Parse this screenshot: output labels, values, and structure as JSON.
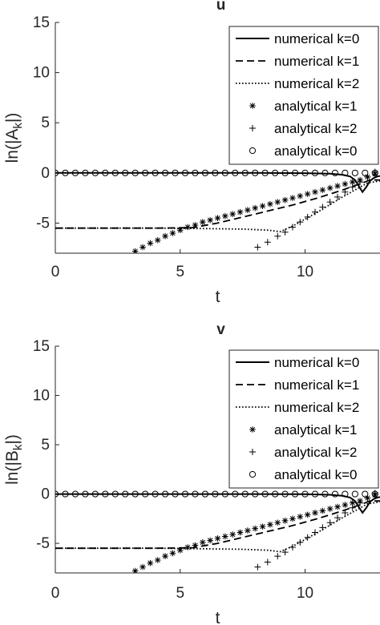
{
  "chart_data": [
    {
      "type": "line",
      "title": "u",
      "xlabel": "t",
      "ylabel": "ln(|A_k|)",
      "ylabel_main": "ln(|A",
      "ylabel_sub": "k",
      "ylabel_end": "|)",
      "xlim": [
        0,
        13
      ],
      "ylim": [
        -8,
        15
      ],
      "xticks": [
        0,
        5,
        10
      ],
      "yticks": [
        -5,
        0,
        5,
        10,
        15
      ],
      "xtick_labels": [
        "0",
        "5",
        "10"
      ],
      "ytick_labels": [
        "-5",
        "0",
        "5",
        "10",
        "15"
      ],
      "grid": false,
      "legend_position": "top-right",
      "series": [
        {
          "name": "numerical k=0",
          "style": "solid",
          "x": [
            0,
            4,
            8,
            10,
            11,
            11.5,
            11.8,
            12.0,
            12.15,
            12.3,
            12.45,
            12.6,
            12.75,
            12.9,
            13
          ],
          "y": [
            0,
            0,
            0,
            -0.02,
            -0.08,
            -0.18,
            -0.35,
            -0.7,
            -1.3,
            -1.9,
            -1.4,
            -0.8,
            -0.5,
            -0.35,
            -0.3
          ]
        },
        {
          "name": "numerical k=1",
          "style": "dashed",
          "x": [
            0,
            2,
            4,
            5.5,
            6.5,
            7.5,
            8.5,
            9.5,
            10.5,
            11.5,
            12.3,
            12.6,
            13
          ],
          "y": [
            -5.5,
            -5.5,
            -5.5,
            -5.45,
            -5.0,
            -4.4,
            -3.8,
            -3.2,
            -2.5,
            -1.7,
            -1.0,
            -0.7,
            -0.7
          ]
        },
        {
          "name": "numerical k=2",
          "style": "dotted",
          "x": [
            0,
            2,
            4,
            6,
            7.5,
            8.5,
            9.0,
            9.5,
            10.5,
            11.5,
            12.5,
            13
          ],
          "y": [
            -5.5,
            -5.5,
            -5.5,
            -5.55,
            -5.6,
            -5.7,
            -5.85,
            -5.3,
            -3.9,
            -2.4,
            -1.0,
            -0.8
          ]
        },
        {
          "name": "analytical k=1",
          "style": "marker-asterisk",
          "x": [
            3.2,
            3.5,
            3.8,
            4.1,
            4.4,
            4.7,
            5.0,
            5.3,
            5.6,
            5.9,
            6.2,
            6.5,
            6.8,
            7.1,
            7.4,
            7.7,
            8.0,
            8.3,
            8.6,
            8.9,
            9.2,
            9.5,
            9.8,
            10.1,
            10.4,
            10.7,
            11.0,
            11.3,
            11.6,
            11.9,
            12.2,
            12.5,
            12.8
          ],
          "y": [
            -7.8,
            -7.4,
            -7.0,
            -6.7,
            -6.3,
            -6.0,
            -5.7,
            -5.4,
            -5.2,
            -4.9,
            -4.7,
            -4.5,
            -4.3,
            -4.1,
            -3.9,
            -3.7,
            -3.5,
            -3.3,
            -3.1,
            -2.9,
            -2.7,
            -2.5,
            -2.3,
            -2.1,
            -1.9,
            -1.7,
            -1.5,
            -1.3,
            -1.1,
            -0.9,
            -0.7,
            -0.4,
            -0.1
          ]
        },
        {
          "name": "analytical k=2",
          "style": "marker-plus",
          "x": [
            8.1,
            8.5,
            8.9,
            9.2,
            9.5,
            9.8,
            10.1,
            10.4,
            10.7,
            11.0,
            11.3,
            11.6,
            11.9,
            12.2,
            12.5,
            12.8
          ],
          "y": [
            -7.4,
            -6.9,
            -6.3,
            -5.9,
            -5.4,
            -4.9,
            -4.4,
            -3.9,
            -3.4,
            -2.9,
            -2.4,
            -1.9,
            -1.4,
            -0.9,
            -0.4,
            0.1
          ]
        },
        {
          "name": "analytical k=0",
          "style": "marker-circle",
          "x": [
            0,
            0.4,
            0.8,
            1.2,
            1.6,
            2.0,
            2.4,
            2.8,
            3.2,
            3.6,
            4.0,
            4.4,
            4.8,
            5.2,
            5.6,
            6.0,
            6.4,
            6.8,
            7.2,
            7.6,
            8.0,
            8.4,
            8.8,
            9.2,
            9.6,
            10.0,
            10.4,
            10.8,
            11.2,
            11.6,
            12.0,
            12.4,
            12.8
          ],
          "y": [
            0,
            0,
            0,
            0,
            0,
            0,
            0,
            0,
            0,
            0,
            0,
            0,
            0,
            0,
            0,
            0,
            0,
            0,
            0,
            0,
            0,
            0,
            0,
            0,
            0,
            0,
            0,
            0,
            0,
            0,
            0,
            0,
            0
          ]
        }
      ]
    },
    {
      "type": "line",
      "title": "v",
      "xlabel": "t",
      "ylabel": "ln(|B_k|)",
      "ylabel_main": "ln(|B",
      "ylabel_sub": "k",
      "ylabel_end": "|)",
      "xlim": [
        0,
        13
      ],
      "ylim": [
        -8,
        15
      ],
      "xticks": [
        0,
        5,
        10
      ],
      "yticks": [
        -5,
        0,
        5,
        10,
        15
      ],
      "xtick_labels": [
        "0",
        "5",
        "10"
      ],
      "ytick_labels": [
        "-5",
        "0",
        "5",
        "10",
        "15"
      ],
      "grid": false,
      "legend_position": "top-right",
      "series": [
        {
          "name": "numerical k=0",
          "style": "solid",
          "x": [
            0,
            4,
            8,
            10,
            11,
            11.5,
            11.8,
            12.0,
            12.15,
            12.3,
            12.45,
            12.6,
            12.75,
            12.9,
            13
          ],
          "y": [
            0,
            0,
            0,
            -0.02,
            -0.08,
            -0.18,
            -0.35,
            -0.7,
            -1.3,
            -1.9,
            -1.4,
            -0.8,
            -0.5,
            -0.35,
            -0.3
          ]
        },
        {
          "name": "numerical k=1",
          "style": "dashed",
          "x": [
            0,
            2,
            4,
            5.5,
            6.5,
            7.5,
            8.5,
            9.5,
            10.5,
            11.5,
            12.3,
            12.6,
            13
          ],
          "y": [
            -5.5,
            -5.5,
            -5.5,
            -5.45,
            -5.0,
            -4.4,
            -3.8,
            -3.2,
            -2.5,
            -1.7,
            -1.0,
            -0.7,
            -0.7
          ]
        },
        {
          "name": "numerical k=2",
          "style": "dotted",
          "x": [
            0,
            2,
            4,
            6,
            7.5,
            8.5,
            9.0,
            9.5,
            10.5,
            11.5,
            12.5,
            13
          ],
          "y": [
            -5.5,
            -5.5,
            -5.5,
            -5.55,
            -5.6,
            -5.7,
            -5.85,
            -5.3,
            -3.9,
            -2.4,
            -1.0,
            -0.8
          ]
        },
        {
          "name": "analytical k=1",
          "style": "marker-asterisk",
          "x": [
            3.2,
            3.5,
            3.8,
            4.1,
            4.4,
            4.7,
            5.0,
            5.3,
            5.6,
            5.9,
            6.2,
            6.5,
            6.8,
            7.1,
            7.4,
            7.7,
            8.0,
            8.3,
            8.6,
            8.9,
            9.2,
            9.5,
            9.8,
            10.1,
            10.4,
            10.7,
            11.0,
            11.3,
            11.6,
            11.9,
            12.2,
            12.5,
            12.8
          ],
          "y": [
            -7.8,
            -7.4,
            -7.0,
            -6.7,
            -6.3,
            -6.0,
            -5.7,
            -5.4,
            -5.2,
            -4.9,
            -4.7,
            -4.5,
            -4.3,
            -4.1,
            -3.9,
            -3.7,
            -3.5,
            -3.3,
            -3.1,
            -2.9,
            -2.7,
            -2.5,
            -2.3,
            -2.1,
            -1.9,
            -1.7,
            -1.5,
            -1.3,
            -1.1,
            -0.9,
            -0.7,
            -0.4,
            -0.1
          ]
        },
        {
          "name": "analytical k=2",
          "style": "marker-plus",
          "x": [
            8.1,
            8.5,
            8.9,
            9.2,
            9.5,
            9.8,
            10.1,
            10.4,
            10.7,
            11.0,
            11.3,
            11.6,
            11.9,
            12.2,
            12.5,
            12.8
          ],
          "y": [
            -7.4,
            -6.9,
            -6.3,
            -5.9,
            -5.4,
            -4.9,
            -4.4,
            -3.9,
            -3.4,
            -2.9,
            -2.4,
            -1.9,
            -1.4,
            -0.9,
            -0.4,
            0.1
          ]
        },
        {
          "name": "analytical k=0",
          "style": "marker-circle",
          "x": [
            0,
            0.4,
            0.8,
            1.2,
            1.6,
            2.0,
            2.4,
            2.8,
            3.2,
            3.6,
            4.0,
            4.4,
            4.8,
            5.2,
            5.6,
            6.0,
            6.4,
            6.8,
            7.2,
            7.6,
            8.0,
            8.4,
            8.8,
            9.2,
            9.6,
            10.0,
            10.4,
            10.8,
            11.2,
            11.6,
            12.0,
            12.4,
            12.8
          ],
          "y": [
            0,
            0,
            0,
            0,
            0,
            0,
            0,
            0,
            0,
            0,
            0,
            0,
            0,
            0,
            0,
            0,
            0,
            0,
            0,
            0,
            0,
            0,
            0,
            0,
            0,
            0,
            0,
            0,
            0,
            0,
            0,
            0,
            0
          ]
        }
      ]
    }
  ]
}
